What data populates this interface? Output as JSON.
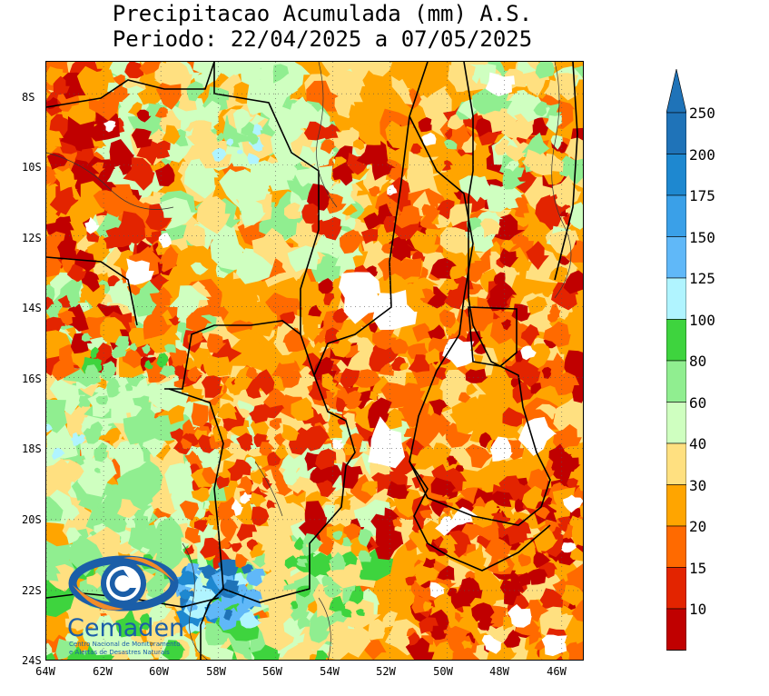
{
  "title": {
    "line1": "Precipitacao Acumulada (mm) A.S.",
    "line2": "Periodo: 22/04/2025 a 07/05/2025"
  },
  "map": {
    "lat_labels": [
      "8S",
      "10S",
      "12S",
      "14S",
      "16S",
      "18S",
      "20S",
      "22S",
      "24S"
    ],
    "lon_labels": [
      "64W",
      "62W",
      "60W",
      "58W",
      "56W",
      "54W",
      "52W",
      "50W",
      "48W",
      "46W"
    ],
    "extent": {
      "lon_min": -64,
      "lon_max": -45.2,
      "lat_min": -24,
      "lat_max": -7.1
    }
  },
  "colorbar": {
    "unit": "mm",
    "levels": [
      {
        "value": "10",
        "color": "#c00000"
      },
      {
        "value": "15",
        "color": "#e32400"
      },
      {
        "value": "20",
        "color": "#ff6a00"
      },
      {
        "value": "30",
        "color": "#ffa500"
      },
      {
        "value": "40",
        "color": "#ffe080"
      },
      {
        "value": "60",
        "color": "#cfffc0"
      },
      {
        "value": "80",
        "color": "#90ee90"
      },
      {
        "value": "100",
        "color": "#3ed43e"
      },
      {
        "value": "125",
        "color": "#b0f4ff"
      },
      {
        "value": "150",
        "color": "#60b8f8"
      },
      {
        "value": "175",
        "color": "#3aa0e8"
      },
      {
        "value": "200",
        "color": "#1e88d0"
      },
      {
        "value": "250",
        "color": "#1f73b8"
      }
    ],
    "below_min_color": "#ffffff"
  },
  "logo": {
    "name": "Cemaden",
    "subtitle_line1": "Centro Nacional de Monitoramento",
    "subtitle_line2": "e Alertas de Desastres Naturais",
    "icon": "cemaden-eye-logo-icon"
  }
}
